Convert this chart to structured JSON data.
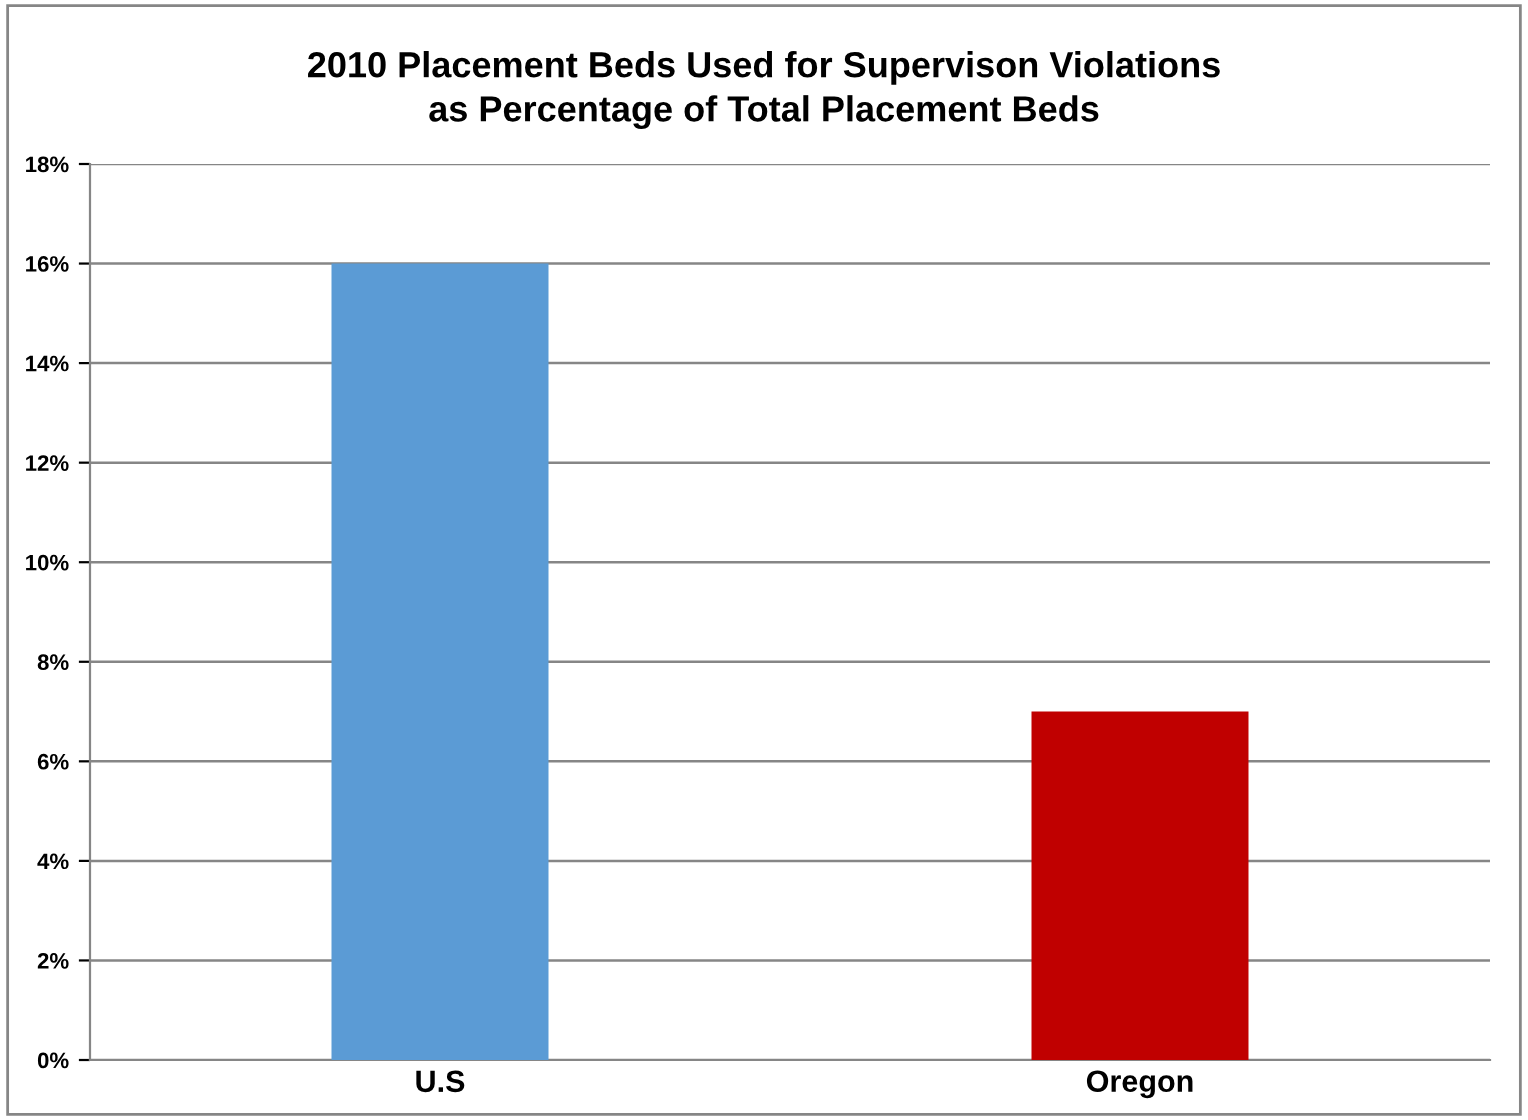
{
  "chart_data": {
    "type": "bar",
    "title": "2010 Placement Beds Used for Supervison Violations\nas Percentage of Total Placement Beds",
    "categories": [
      "U.S",
      "Oregon"
    ],
    "values": [
      16,
      7
    ],
    "colors": [
      "#5b9bd5",
      "#c00000"
    ],
    "ylim": [
      0,
      18
    ],
    "yticks": [
      {
        "value": 0,
        "label": "0%"
      },
      {
        "value": 2,
        "label": "2%"
      },
      {
        "value": 4,
        "label": "4%"
      },
      {
        "value": 6,
        "label": "6%"
      },
      {
        "value": 8,
        "label": "8%"
      },
      {
        "value": 10,
        "label": "10%"
      },
      {
        "value": 12,
        "label": "12%"
      },
      {
        "value": 14,
        "label": "14%"
      },
      {
        "value": 16,
        "label": "16%"
      },
      {
        "value": 18,
        "label": "18%"
      }
    ],
    "grid": "y",
    "legend": false
  }
}
